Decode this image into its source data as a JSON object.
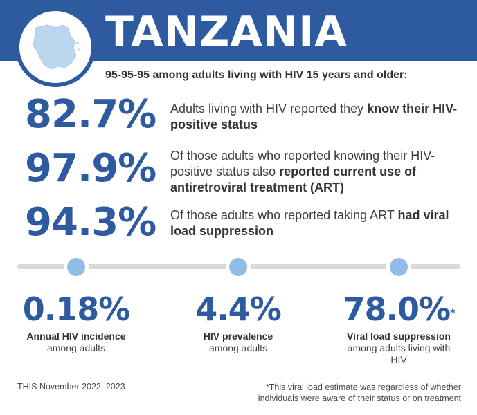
{
  "header": {
    "title": "TANZANIA",
    "map_icon": "tanzania-map-icon",
    "bg_color": "#2e5aa0"
  },
  "subtitle": "95-95-95 among adults living with HIV 15 years and older:",
  "stats": [
    {
      "value": "82.7%",
      "text_plain": "Adults living with HIV reported they ",
      "text_bold": "know their HIV-positive status",
      "text_tail": ""
    },
    {
      "value": "97.9%",
      "text_plain": "Of those adults who reported knowing their HIV-positive status also ",
      "text_bold": "reported current use of antiretroviral treatment (ART)",
      "text_tail": ""
    },
    {
      "value": "94.3%",
      "text_plain": "Of those adults who reported taking ART ",
      "text_bold": "had viral load suppression",
      "text_tail": ""
    }
  ],
  "metrics": [
    {
      "value": "0.18%",
      "label": "Annual HIV incidence",
      "sub": "among adults",
      "asterisk": ""
    },
    {
      "value": "4.4%",
      "label": "HIV prevalence",
      "sub": "among adults",
      "asterisk": ""
    },
    {
      "value": "78.0%",
      "label": "Viral load suppression",
      "sub": "among adults living with HIV",
      "asterisk": "*"
    }
  ],
  "footer": {
    "source": "THIS November 2022–2023",
    "footnote": "*This viral load estimate was regardless of whether individuals were aware of their status or on treatment"
  },
  "colors": {
    "accent": "#2e5aa0",
    "dot": "#8fbde8",
    "track": "#d9d9d9"
  }
}
